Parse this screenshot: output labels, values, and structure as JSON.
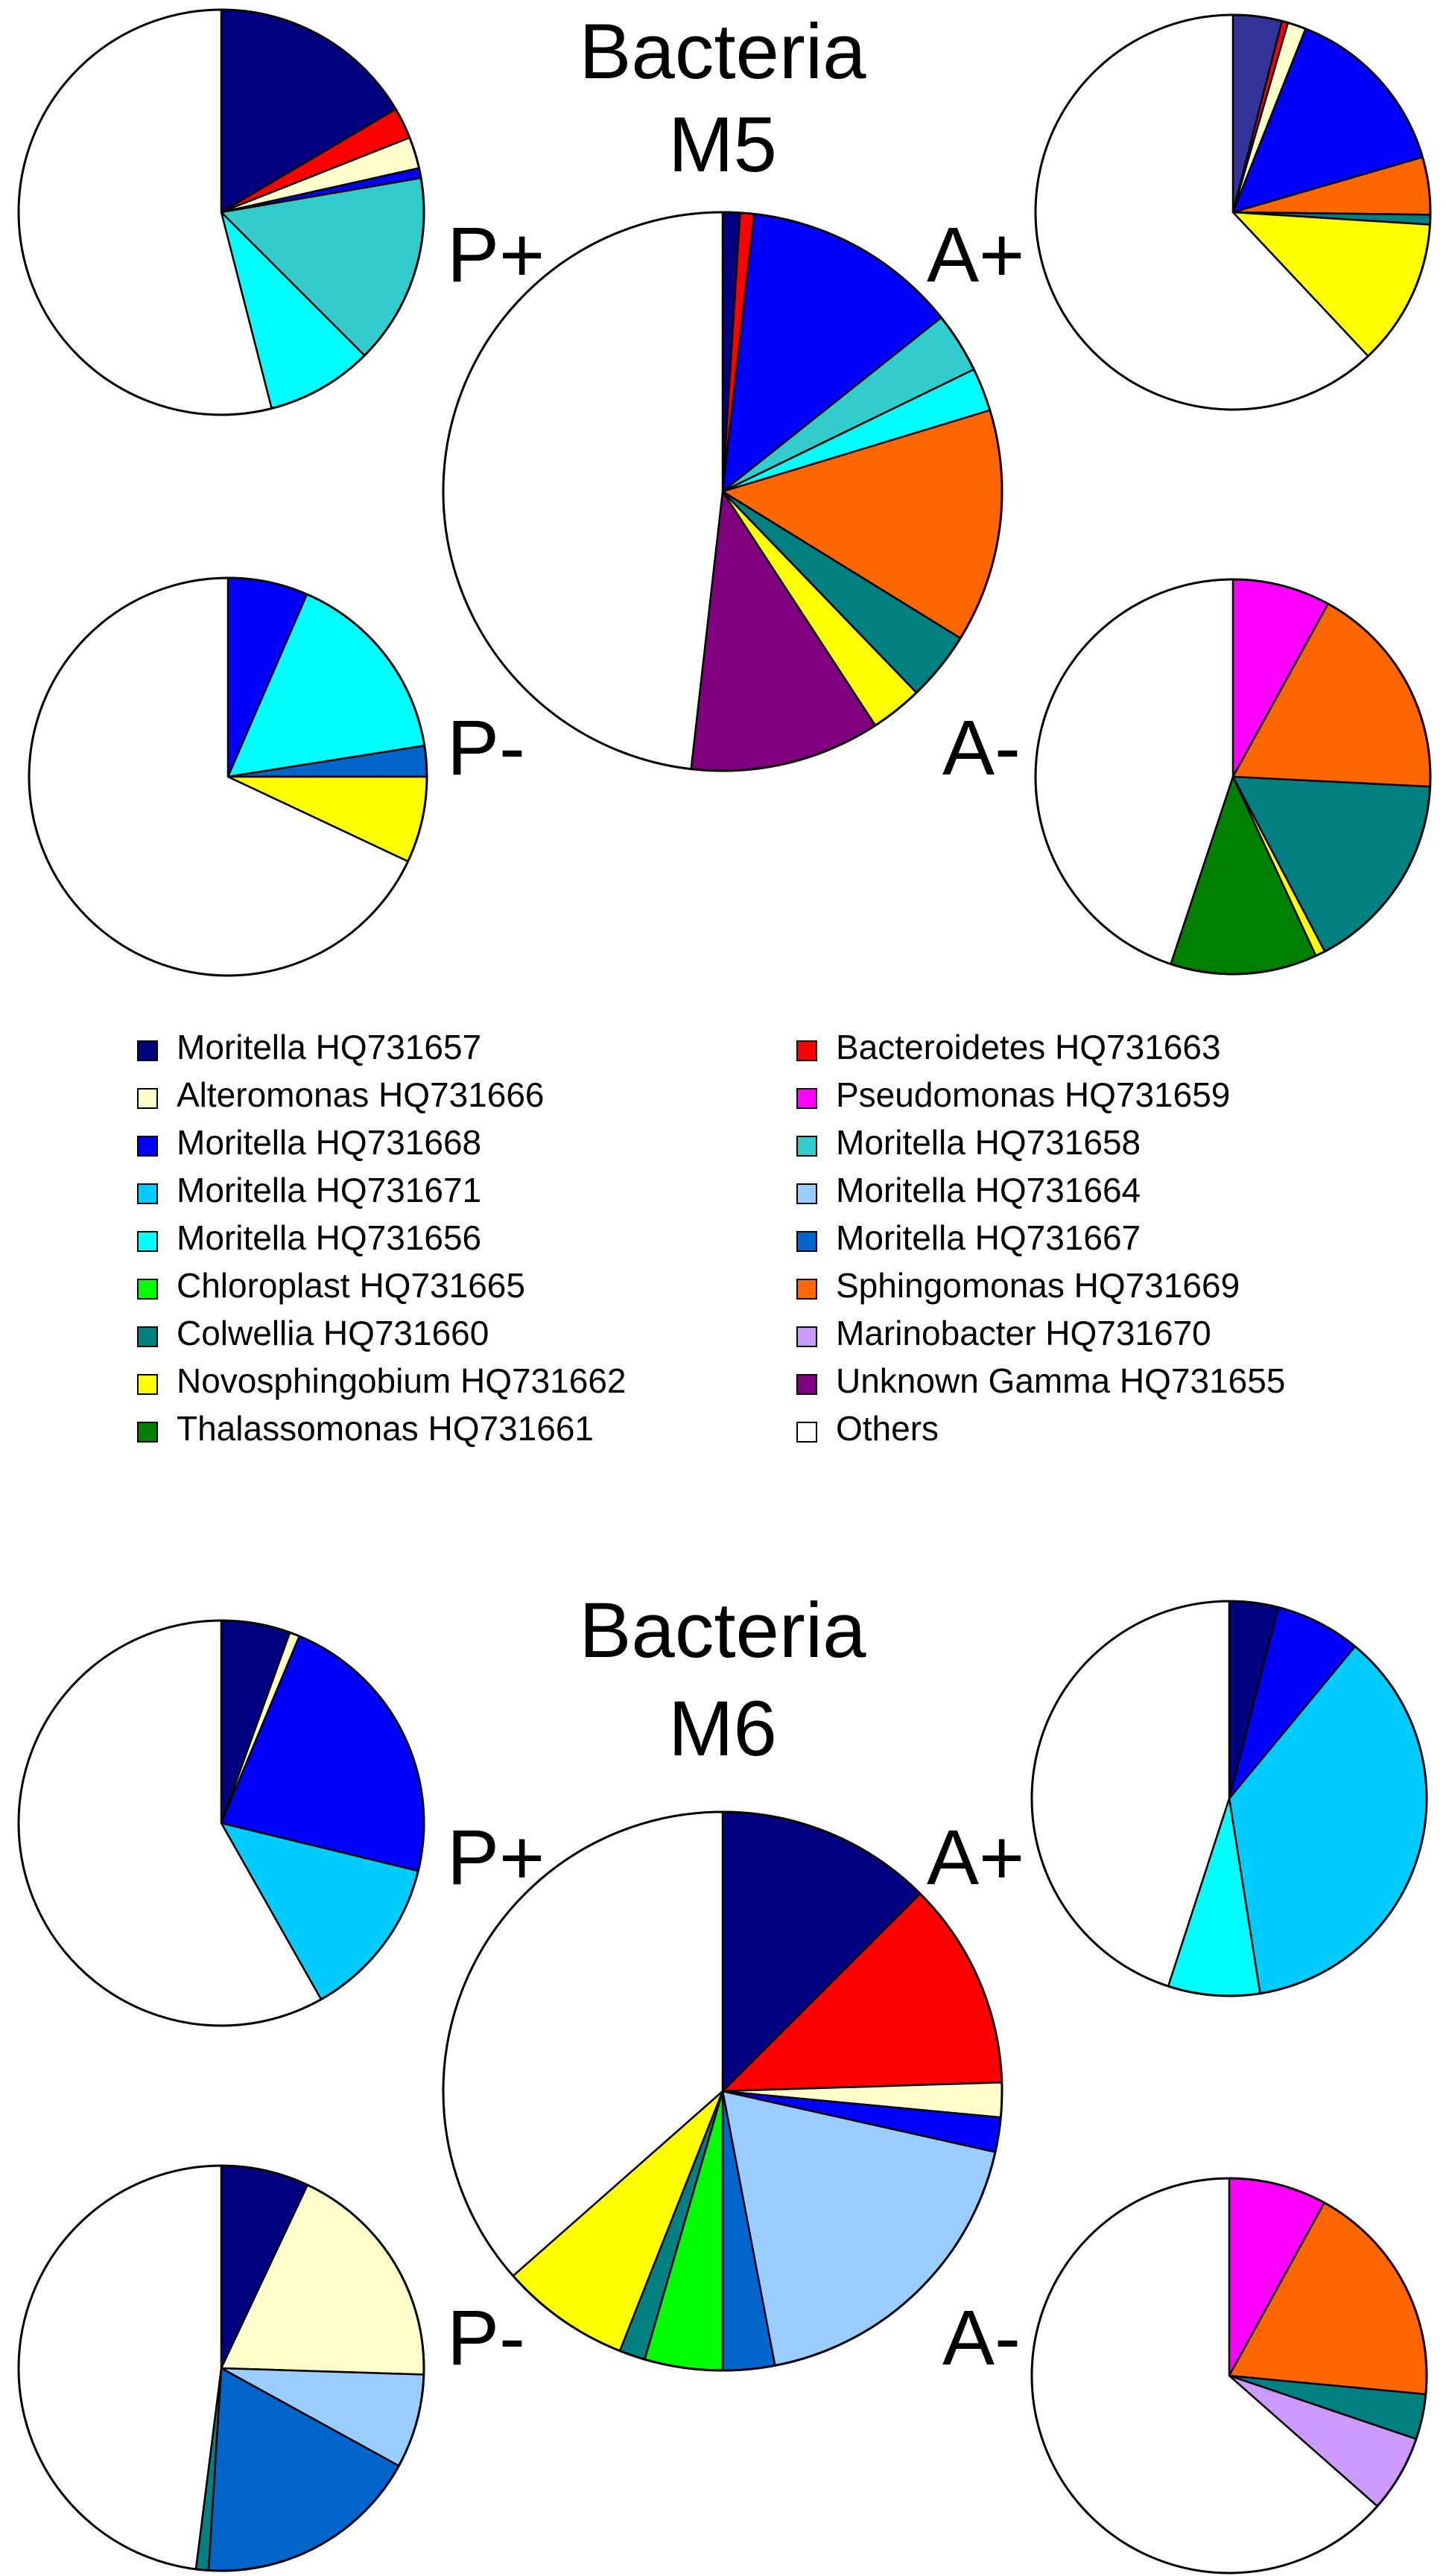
{
  "colors": {
    "Moritella HQ731657": "#000080",
    "Bacteroidetes HQ731663": "#ff0000",
    "Alteromonas HQ731666": "#ffffcc",
    "Pseudomonas HQ731659": "#ff00ff",
    "Moritella HQ731668": "#0000ff",
    "Moritella HQ731658": "#33cccc",
    "Moritella HQ731671": "#00ccff",
    "Moritella HQ731664": "#99ccff",
    "Moritella HQ731656": "#00ffff",
    "Moritella HQ731667": "#0066cc",
    "Chloroplast HQ731665": "#00ff00",
    "Sphingomonas HQ731669": "#ff6600",
    "Colwellia HQ731660": "#008080",
    "Marinobacter HQ731670": "#cc99ff",
    "Novosphingobium HQ731662": "#ffff00",
    "Unknown Gamma HQ731655": "#800080",
    "Thalassomonas HQ731661": "#008000",
    "Others": "#ffffff",
    "M5 A+ slice 1": "#333399"
  },
  "legend": {
    "items": [
      "Moritella HQ731657",
      "Bacteroidetes HQ731663",
      "Alteromonas HQ731666",
      "Pseudomonas HQ731659",
      "Moritella HQ731668",
      "Moritella HQ731658",
      "Moritella HQ731671",
      "Moritella HQ731664",
      "Moritella HQ731656",
      "Moritella HQ731667",
      "Chloroplast HQ731665",
      "Sphingomonas HQ731669",
      "Colwellia HQ731660",
      "Marinobacter HQ731670",
      "Novosphingobium HQ731662",
      "Unknown Gamma HQ731655",
      "Thalassomonas HQ731661",
      "Others"
    ]
  },
  "chart_data": [
    {
      "type": "pie",
      "title": "Bacteria M5",
      "title_lines": [
        "Bacteria",
        "M5"
      ],
      "charts": [
        {
          "label": "",
          "slices": [
            {
              "name": "Moritella HQ731657",
              "value": 1.0
            },
            {
              "name": "Bacteroidetes HQ731663",
              "value": 0.8
            },
            {
              "name": "Moritella HQ731668",
              "value": 12.5
            },
            {
              "name": "Moritella HQ731658",
              "value": 3.5
            },
            {
              "name": "Moritella HQ731656",
              "value": 2.5
            },
            {
              "name": "Sphingomonas HQ731669",
              "value": 13.5
            },
            {
              "name": "Colwellia HQ731660",
              "value": 4.0
            },
            {
              "name": "Novosphingobium HQ731662",
              "value": 3.0
            },
            {
              "name": "Unknown Gamma HQ731655",
              "value": 11.0
            },
            {
              "name": "Others",
              "value": 48.2
            }
          ]
        },
        {
          "label": "P+",
          "slices": [
            {
              "name": "Moritella HQ731657",
              "value": 16.5
            },
            {
              "name": "Bacteroidetes HQ731663",
              "value": 2.5
            },
            {
              "name": "Alteromonas HQ731666",
              "value": 2.5
            },
            {
              "name": "Moritella HQ731668",
              "value": 0.8
            },
            {
              "name": "Moritella HQ731658",
              "value": 15.2
            },
            {
              "name": "Moritella HQ731656",
              "value": 8.5
            },
            {
              "name": "Others",
              "value": 54.0
            }
          ]
        },
        {
          "label": "A+",
          "slices": [
            {
              "name": "M5 A+ slice 1",
              "value": 4.0
            },
            {
              "name": "Bacteroidetes HQ731663",
              "value": 0.5
            },
            {
              "name": "Alteromonas HQ731666",
              "value": 1.5
            },
            {
              "name": "Moritella HQ731668",
              "value": 14.5
            },
            {
              "name": "Sphingomonas HQ731669",
              "value": 4.7
            },
            {
              "name": "Colwellia HQ731660",
              "value": 0.8
            },
            {
              "name": "Novosphingobium HQ731662",
              "value": 12.0
            },
            {
              "name": "Others",
              "value": 62.0
            }
          ]
        },
        {
          "label": "P-",
          "slices": [
            {
              "name": "Moritella HQ731668",
              "value": 6.5
            },
            {
              "name": "Moritella HQ731656",
              "value": 16.0
            },
            {
              "name": "Moritella HQ731667",
              "value": 2.5
            },
            {
              "name": "Novosphingobium HQ731662",
              "value": 7.0
            },
            {
              "name": "Others",
              "value": 68.0
            }
          ]
        },
        {
          "label": "A-",
          "slices": [
            {
              "name": "Pseudomonas HQ731659",
              "value": 8.0
            },
            {
              "name": "Sphingomonas HQ731669",
              "value": 17.8
            },
            {
              "name": "Colwellia HQ731660",
              "value": 16.5
            },
            {
              "name": "Novosphingobium HQ731662",
              "value": 0.8
            },
            {
              "name": "Thalassomonas HQ731661",
              "value": 12.0
            },
            {
              "name": "Others",
              "value": 44.9
            }
          ]
        }
      ]
    },
    {
      "type": "pie",
      "title": "Bacteria M6",
      "title_lines": [
        "Bacteria",
        "M6"
      ],
      "charts": [
        {
          "label": "",
          "slices": [
            {
              "name": "Moritella HQ731657",
              "value": 12.5
            },
            {
              "name": "Bacteroidetes HQ731663",
              "value": 12.0
            },
            {
              "name": "Alteromonas HQ731666",
              "value": 2.0
            },
            {
              "name": "Moritella HQ731668",
              "value": 2.0
            },
            {
              "name": "Moritella HQ731664",
              "value": 18.5
            },
            {
              "name": "Moritella HQ731667",
              "value": 3.0
            },
            {
              "name": "Chloroplast HQ731665",
              "value": 4.5
            },
            {
              "name": "Colwellia HQ731660",
              "value": 1.5
            },
            {
              "name": "Novosphingobium HQ731662",
              "value": 7.5
            },
            {
              "name": "Others",
              "value": 36.5
            }
          ]
        },
        {
          "label": "P+",
          "slices": [
            {
              "name": "Moritella HQ731657",
              "value": 5.5
            },
            {
              "name": "Alteromonas HQ731666",
              "value": 0.8
            },
            {
              "name": "Moritella HQ731668",
              "value": 22.5
            },
            {
              "name": "Moritella HQ731671",
              "value": 13.0
            },
            {
              "name": "Others",
              "value": 58.2
            }
          ]
        },
        {
          "label": "A+",
          "slices": [
            {
              "name": "Moritella HQ731657",
              "value": 4.0
            },
            {
              "name": "Moritella HQ731668",
              "value": 7.0
            },
            {
              "name": "Moritella HQ731671",
              "value": 36.5
            },
            {
              "name": "Moritella HQ731656",
              "value": 7.5
            },
            {
              "name": "Others",
              "value": 45.0
            }
          ]
        },
        {
          "label": "P-",
          "slices": [
            {
              "name": "Moritella HQ731657",
              "value": 7.0
            },
            {
              "name": "Alteromonas HQ731666",
              "value": 18.5
            },
            {
              "name": "Moritella HQ731664",
              "value": 7.5
            },
            {
              "name": "Moritella HQ731667",
              "value": 18.0
            },
            {
              "name": "Colwellia HQ731660",
              "value": 1.0
            },
            {
              "name": "Others",
              "value": 48.0
            }
          ]
        },
        {
          "label": "A-",
          "slices": [
            {
              "name": "Pseudomonas HQ731659",
              "value": 8.0
            },
            {
              "name": "Sphingomonas HQ731669",
              "value": 18.5
            },
            {
              "name": "Colwellia HQ731660",
              "value": 3.7
            },
            {
              "name": "Marinobacter HQ731670",
              "value": 6.3
            },
            {
              "name": "Others",
              "value": 63.5
            }
          ]
        }
      ]
    }
  ]
}
